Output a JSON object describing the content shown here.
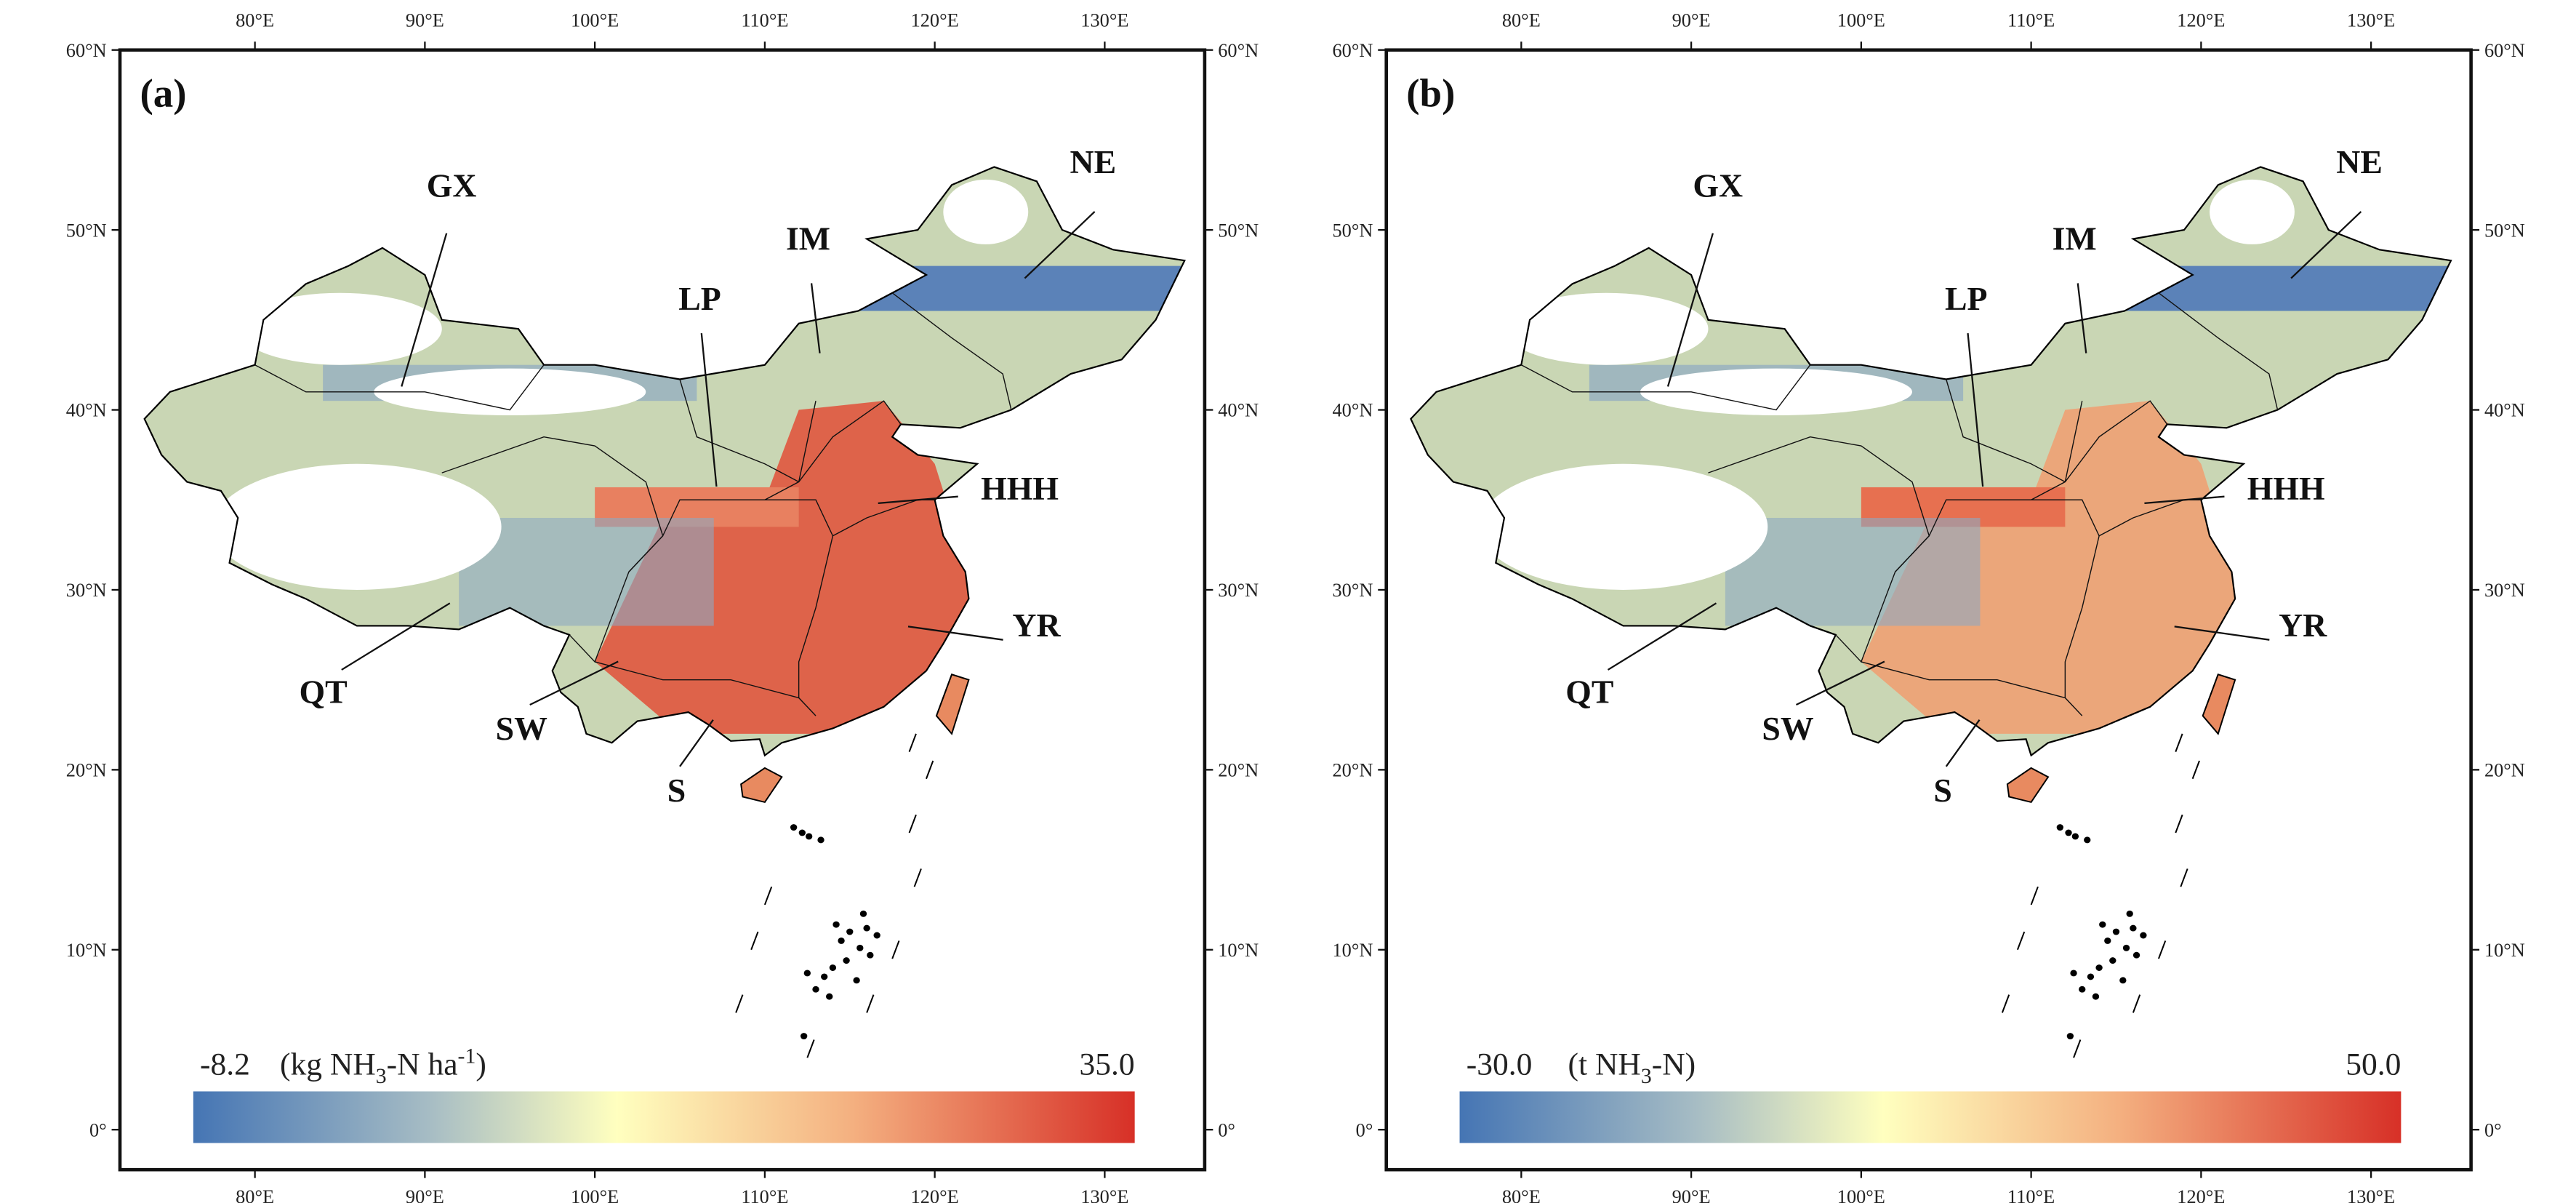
{
  "panels": [
    {
      "label": "(a)",
      "colorbar": {
        "min": "-8.2",
        "max": "35.0",
        "unit": [
          "(kg NH",
          "3",
          "-N ha",
          "-1",
          ")"
        ]
      }
    },
    {
      "label": "(b)",
      "colorbar": {
        "min": "-30.0",
        "max": "50.0",
        "unit": [
          "(t NH",
          "3",
          "-N)"
        ]
      }
    }
  ],
  "regions": [
    "GX",
    "IM",
    "LP",
    "NE",
    "HHH",
    "YR",
    "QT",
    "SW",
    "S"
  ],
  "lon_labels": [
    "80°E",
    "90°E",
    "100°E",
    "110°E",
    "120°E",
    "130°E"
  ],
  "lat_labels": [
    "0°",
    "10°N",
    "20°N",
    "30°N",
    "40°N",
    "50°N",
    "60°N"
  ]
}
